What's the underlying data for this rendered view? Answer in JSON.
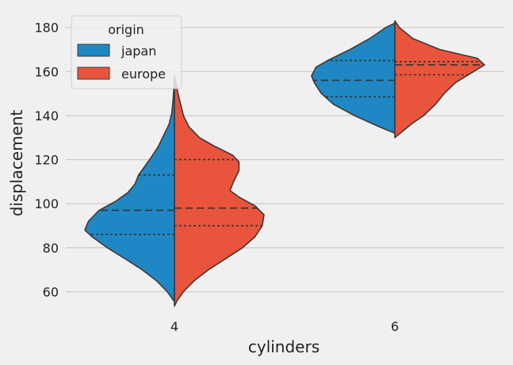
{
  "chart_data": {
    "type": "violin",
    "split": true,
    "title": "",
    "xlabel": "cylinders",
    "ylabel": "displacement",
    "categories": [
      "4",
      "6"
    ],
    "ylim": [
      53,
      186
    ],
    "yticks": [
      60,
      80,
      100,
      120,
      140,
      160,
      180
    ],
    "grid": "horizontal",
    "legend": {
      "title": "origin",
      "placement": "top-left",
      "entries": [
        {
          "label": "japan",
          "color": "#1f88c4"
        },
        {
          "label": "europe",
          "color": "#e8543c"
        }
      ]
    },
    "series": [
      {
        "name": "japan",
        "color": "#1f88c4",
        "groups": [
          {
            "category": "4",
            "quartiles": {
              "q1": 86,
              "median": 97,
              "q3": 113
            },
            "density": [
              [
                55.5,
                0.0
              ],
              [
                60,
                0.08
              ],
              [
                65,
                0.2
              ],
              [
                70,
                0.36
              ],
              [
                75,
                0.55
              ],
              [
                80,
                0.75
              ],
              [
                85,
                0.92
              ],
              [
                88,
                1.0
              ],
              [
                92,
                0.96
              ],
              [
                97,
                0.84
              ],
              [
                101,
                0.66
              ],
              [
                105,
                0.52
              ],
              [
                109,
                0.44
              ],
              [
                113,
                0.4
              ],
              [
                117,
                0.33
              ],
              [
                121,
                0.26
              ],
              [
                126,
                0.18
              ],
              [
                131,
                0.12
              ],
              [
                136,
                0.06
              ],
              [
                141,
                0.03
              ],
              [
                147,
                0.015
              ],
              [
                153,
                0.005
              ],
              [
                156,
                0.0
              ]
            ]
          },
          {
            "category": "6",
            "quartiles": {
              "q1": 148.5,
              "median": 156,
              "q3": 165
            },
            "density": [
              [
                132,
                0.0
              ],
              [
                135,
                0.18
              ],
              [
                140,
                0.45
              ],
              [
                145,
                0.68
              ],
              [
                150,
                0.82
              ],
              [
                155,
                0.9
              ],
              [
                158,
                0.93
              ],
              [
                162,
                0.88
              ],
              [
                165,
                0.75
              ],
              [
                170,
                0.5
              ],
              [
                175,
                0.28
              ],
              [
                180,
                0.1
              ],
              [
                182,
                0.0
              ]
            ]
          }
        ]
      },
      {
        "name": "europe",
        "color": "#e8543c",
        "groups": [
          {
            "category": "4",
            "quartiles": {
              "q1": 90,
              "median": 98,
              "q3": 120
            },
            "density": [
              [
                53.5,
                0.0
              ],
              [
                56,
                0.03
              ],
              [
                60,
                0.1
              ],
              [
                65,
                0.22
              ],
              [
                70,
                0.38
              ],
              [
                75,
                0.57
              ],
              [
                80,
                0.76
              ],
              [
                85,
                0.9
              ],
              [
                90,
                0.98
              ],
              [
                95,
                1.0
              ],
              [
                99,
                0.9
              ],
              [
                103,
                0.72
              ],
              [
                106,
                0.62
              ],
              [
                110,
                0.66
              ],
              [
                115,
                0.72
              ],
              [
                119,
                0.72
              ],
              [
                122,
                0.65
              ],
              [
                126,
                0.45
              ],
              [
                130,
                0.28
              ],
              [
                135,
                0.16
              ],
              [
                140,
                0.1
              ],
              [
                145,
                0.07
              ],
              [
                150,
                0.04
              ],
              [
                155,
                0.015
              ],
              [
                158,
                0.0
              ]
            ]
          },
          {
            "category": "6",
            "quartiles": {
              "q1": 158.5,
              "median": 163,
              "q3": 164.5
            },
            "density": [
              [
                130,
                0.0
              ],
              [
                132,
                0.06
              ],
              [
                136,
                0.18
              ],
              [
                140,
                0.32
              ],
              [
                145,
                0.45
              ],
              [
                150,
                0.55
              ],
              [
                155,
                0.68
              ],
              [
                160,
                0.88
              ],
              [
                163,
                1.0
              ],
              [
                166,
                0.92
              ],
              [
                170,
                0.5
              ],
              [
                175,
                0.2
              ],
              [
                180,
                0.05
              ],
              [
                183,
                0.0
              ]
            ]
          }
        ]
      }
    ]
  }
}
